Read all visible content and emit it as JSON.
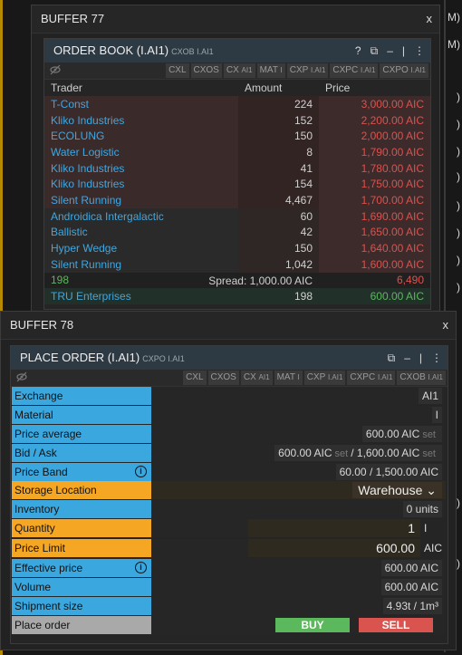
{
  "background": {
    "fragments": [
      "M)",
      "M)",
      ")",
      ")",
      ")",
      ")",
      ")",
      ")",
      ")",
      ")",
      ")",
      ")"
    ]
  },
  "buffer77": {
    "title": "BUFFER 77",
    "close": "x",
    "panel": {
      "title": "ORDER BOOK (I.AI1)",
      "subtitle": "CXOB I.AI1",
      "tools": [
        "?",
        "⧉",
        "–",
        "|",
        "⋮"
      ],
      "buttons": [
        {
          "a": "CXL",
          "b": ""
        },
        {
          "a": "CXOS",
          "b": ""
        },
        {
          "a": "CX",
          "b": "AI1"
        },
        {
          "a": "MAT",
          "b": "I"
        },
        {
          "a": "CXP",
          "b": "I.AI1"
        },
        {
          "a": "CXPC",
          "b": "I.AI1"
        },
        {
          "a": "CXPO",
          "b": "I.AI1"
        }
      ],
      "headers": {
        "trader": "Trader",
        "amount": "Amount",
        "price": "Price"
      },
      "asks": [
        {
          "trader": "T-Const",
          "amount": "224",
          "price": "3,000.00 AIC"
        },
        {
          "trader": "Kliko Industries",
          "amount": "152",
          "price": "2,200.00 AIC"
        },
        {
          "trader": "ECOLUNG",
          "amount": "150",
          "price": "2,000.00 AIC"
        },
        {
          "trader": "Water Logistic",
          "amount": "8",
          "price": "1,790.00 AIC"
        },
        {
          "trader": "Kliko Industries",
          "amount": "41",
          "price": "1,780.00 AIC"
        },
        {
          "trader": "Kliko Industries",
          "amount": "154",
          "price": "1,750.00 AIC"
        },
        {
          "trader": "Silent Running",
          "amount": "4,467",
          "price": "1,700.00 AIC"
        },
        {
          "trader": "Androidica Intergalactic",
          "amount": "60",
          "price": "1,690.00 AIC"
        },
        {
          "trader": "Ballistic",
          "amount": "42",
          "price": "1,650.00 AIC"
        },
        {
          "trader": "Hyper Wedge",
          "amount": "150",
          "price": "1,640.00 AIC"
        },
        {
          "trader": "Silent Running",
          "amount": "1,042",
          "price": "1,600.00 AIC"
        }
      ],
      "spread": {
        "left": "198",
        "label": "Spread: 1,000.00 AIC",
        "right": "6,490"
      },
      "bids": [
        {
          "trader": "TRU Enterprises",
          "amount": "198",
          "price": "600.00 AIC"
        }
      ]
    }
  },
  "buffer78": {
    "title": "BUFFER 78",
    "close": "x",
    "panel": {
      "title": "PLACE ORDER (I.AI1)",
      "subtitle": "CXPO I.AI1",
      "tools": [
        "⧉",
        "–",
        "|",
        "⋮"
      ],
      "buttons": [
        {
          "a": "CXL",
          "b": ""
        },
        {
          "a": "CXOS",
          "b": ""
        },
        {
          "a": "CX",
          "b": "AI1"
        },
        {
          "a": "MAT",
          "b": "I"
        },
        {
          "a": "CXP",
          "b": "I.AI1"
        },
        {
          "a": "CXPC",
          "b": "I.AI1"
        },
        {
          "a": "CXOB",
          "b": "I.AI1"
        }
      ],
      "rows": {
        "exchange": {
          "label": "Exchange",
          "value": "AI1"
        },
        "material": {
          "label": "Material",
          "value": "I"
        },
        "price_average": {
          "label": "Price average",
          "value": "600.00 AIC",
          "tag": "set"
        },
        "bid_ask": {
          "label": "Bid / Ask",
          "bid": "600.00 AIC",
          "bid_tag": "set",
          "sep": "/",
          "ask": "1,600.00 AIC",
          "ask_tag": "set"
        },
        "price_band": {
          "label": "Price Band",
          "value": "60.00 / 1,500.00 AIC",
          "info": "i"
        },
        "storage_location": {
          "label": "Storage Location",
          "value": "Warehouse"
        },
        "inventory": {
          "label": "Inventory",
          "value": "0 units"
        },
        "quantity": {
          "label": "Quantity",
          "value": "1",
          "unit": "I"
        },
        "price_limit": {
          "label": "Price Limit",
          "value": "600.00",
          "unit": "AIC"
        },
        "effective_price": {
          "label": "Effective price",
          "value": "600.00 AIC",
          "info": "i"
        },
        "volume": {
          "label": "Volume",
          "value": "600.00 AIC"
        },
        "shipment_size": {
          "label": "Shipment size",
          "value": "4.93t / 1m³"
        },
        "place_order": {
          "label": "Place order",
          "buy": "BUY",
          "sell": "SELL"
        }
      }
    }
  },
  "colors": {
    "blue_label": "#3ba7df",
    "orange_label": "#f5a623",
    "ask_red": "#d9534f",
    "bid_green": "#5cb85c",
    "trader_blue": "#3fa7e0"
  }
}
